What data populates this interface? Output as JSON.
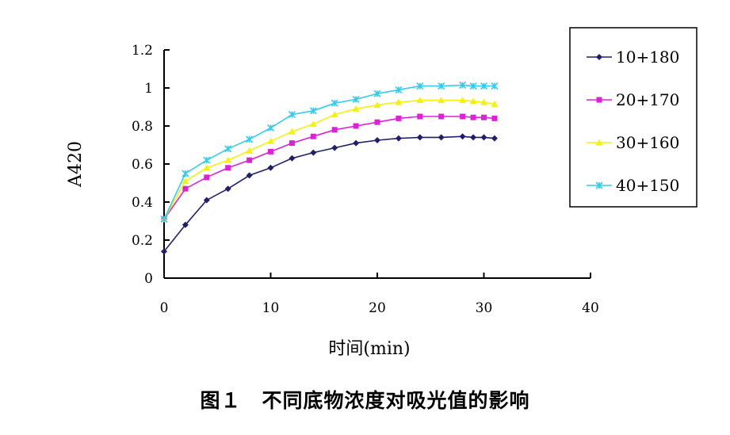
{
  "chart_data": {
    "type": "line",
    "title": "",
    "xlabel": "时间(min)",
    "ylabel": "A420",
    "xlim": [
      0,
      40
    ],
    "ylim": [
      0,
      1.2
    ],
    "xticks": [
      0,
      10,
      20,
      30,
      40
    ],
    "yticks": [
      0,
      0.2,
      0.4,
      0.6,
      0.8,
      1,
      1.2
    ],
    "xtick_labels": [
      "0",
      "10",
      "20",
      "30",
      "40"
    ],
    "ytick_labels": [
      "0",
      "0.2",
      "0.4",
      "0.6",
      "0.8",
      "1",
      "1.2"
    ],
    "grid": false,
    "legend_position": "right",
    "x": [
      0,
      2,
      4,
      6,
      8,
      10,
      12,
      14,
      16,
      18,
      20,
      22,
      24,
      26,
      28,
      29,
      30,
      31
    ],
    "series": [
      {
        "name": "10+180",
        "color": "#1f1f6e",
        "marker": "diamond",
        "values": [
          0.14,
          0.28,
          0.41,
          0.47,
          0.54,
          0.58,
          0.63,
          0.66,
          0.685,
          0.71,
          0.725,
          0.735,
          0.74,
          0.74,
          0.745,
          0.74,
          0.74,
          0.735
        ]
      },
      {
        "name": "20+170",
        "color": "#e020d8",
        "marker": "square",
        "values": [
          0.31,
          0.47,
          0.53,
          0.58,
          0.62,
          0.665,
          0.71,
          0.745,
          0.78,
          0.8,
          0.82,
          0.84,
          0.85,
          0.85,
          0.85,
          0.845,
          0.845,
          0.84
        ]
      },
      {
        "name": "30+160",
        "color": "#f2f20a",
        "marker": "triangle",
        "values": [
          0.31,
          0.51,
          0.58,
          0.62,
          0.67,
          0.72,
          0.77,
          0.81,
          0.86,
          0.89,
          0.91,
          0.925,
          0.935,
          0.935,
          0.935,
          0.93,
          0.925,
          0.915
        ]
      },
      {
        "name": "40+150",
        "color": "#33ccee",
        "marker": "star",
        "values": [
          0.31,
          0.55,
          0.62,
          0.68,
          0.73,
          0.79,
          0.86,
          0.88,
          0.92,
          0.94,
          0.97,
          0.99,
          1.01,
          1.01,
          1.015,
          1.01,
          1.01,
          1.01
        ]
      }
    ]
  },
  "caption": "图１　不同底物浓度对吸光值的影响"
}
